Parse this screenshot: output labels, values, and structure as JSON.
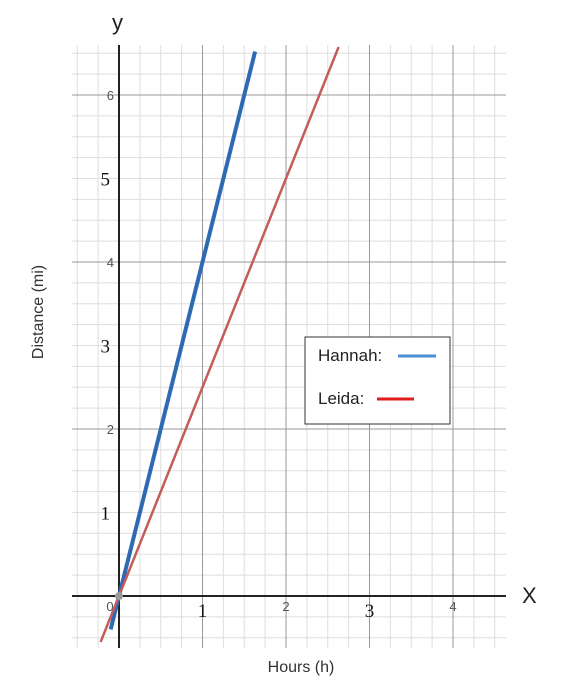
{
  "chart_data": {
    "type": "line",
    "xlabel": "Hours (h)",
    "ylabel": "Distance (mi)",
    "x_axis_letter": "X",
    "y_axis_letter": "y",
    "xlim": [
      -0.55,
      4.6
    ],
    "ylim": [
      -0.55,
      6.6
    ],
    "grid": true,
    "x_ticks": [
      {
        "value": 0,
        "label": "0",
        "style": "sans"
      },
      {
        "value": 1,
        "label": "1",
        "style": "serif"
      },
      {
        "value": 2,
        "label": "2",
        "style": "sans"
      },
      {
        "value": 3,
        "label": "3",
        "style": "serif"
      },
      {
        "value": 4,
        "label": "4",
        "style": "sans"
      }
    ],
    "y_ticks": [
      {
        "value": 1,
        "label": "1",
        "style": "serif"
      },
      {
        "value": 2,
        "label": "2",
        "style": "sans"
      },
      {
        "value": 3,
        "label": "3",
        "style": "serif"
      },
      {
        "value": 4,
        "label": "4",
        "style": "sans"
      },
      {
        "value": 5,
        "label": "5",
        "style": "serif"
      },
      {
        "value": 6,
        "label": "6",
        "style": "sans"
      }
    ],
    "series": [
      {
        "name": "Hannah:",
        "color": "#2e6ab3",
        "legend_color": "#4a8fd6",
        "slope": 4,
        "x_range": [
          -0.1,
          1.63
        ]
      },
      {
        "name": "Leida:",
        "color": "#c45c5a",
        "legend_color": "#e01b1b",
        "slope": 2.5,
        "x_range": [
          -0.22,
          2.63
        ]
      }
    ],
    "legend": {
      "position": "right-middle"
    }
  }
}
